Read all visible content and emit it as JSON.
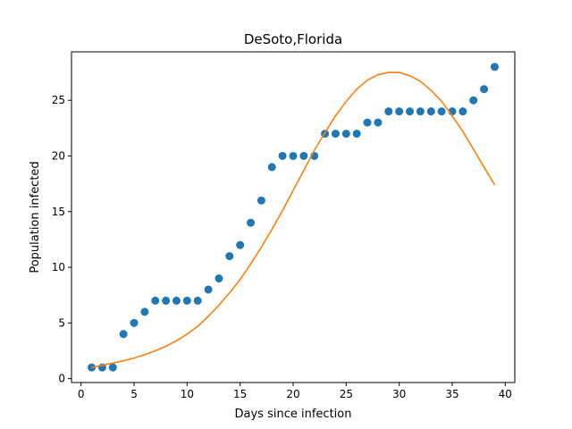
{
  "chart_data": {
    "type": "scatter",
    "title": "DeSoto,Florida",
    "xlabel": "Days since infection",
    "ylabel": "Population infected",
    "xlim": [
      -0.9,
      40.9
    ],
    "ylim": [
      -0.35,
      29.35
    ],
    "xticks": [
      0,
      5,
      10,
      15,
      20,
      25,
      30,
      35,
      40
    ],
    "yticks": [
      0,
      5,
      10,
      15,
      20,
      25
    ],
    "grid": false,
    "legend": "none",
    "series": [
      {
        "type": "scatter",
        "color": "#1f77b4",
        "x": [
          1,
          2,
          3,
          4,
          5,
          6,
          7,
          8,
          9,
          10,
          11,
          12,
          13,
          14,
          15,
          16,
          17,
          18,
          19,
          20,
          21,
          22,
          23,
          24,
          25,
          26,
          27,
          28,
          29,
          30,
          31,
          32,
          33,
          34,
          35,
          36,
          37,
          38,
          39
        ],
        "y": [
          1,
          1,
          1,
          4,
          5,
          6,
          7,
          7,
          7,
          7,
          7,
          8,
          9,
          11,
          12,
          14,
          16,
          19,
          20,
          20,
          20,
          20,
          22,
          22,
          22,
          22,
          23,
          23,
          24,
          24,
          24,
          24,
          24,
          24,
          24,
          24,
          25,
          26,
          28
        ]
      },
      {
        "type": "line",
        "color": "#ff7f0e",
        "x": [
          1,
          2,
          3,
          4,
          5,
          6,
          7,
          8,
          9,
          10,
          11,
          12,
          13,
          14,
          15,
          16,
          17,
          18,
          19,
          20,
          21,
          22,
          23,
          24,
          25,
          26,
          27,
          28,
          29,
          30,
          31,
          32,
          33,
          34,
          35,
          36,
          37,
          38,
          39
        ],
        "y": [
          1.0,
          1.2,
          1.4,
          1.6,
          1.85,
          2.15,
          2.5,
          2.9,
          3.4,
          4.0,
          4.7,
          5.6,
          6.6,
          7.7,
          8.9,
          10.3,
          11.8,
          13.4,
          15.1,
          16.9,
          18.7,
          20.5,
          22.1,
          23.6,
          24.9,
          26.0,
          26.8,
          27.3,
          27.5,
          27.5,
          27.2,
          26.7,
          25.9,
          24.9,
          23.6,
          22.2,
          20.6,
          19.0,
          17.4
        ]
      }
    ]
  }
}
